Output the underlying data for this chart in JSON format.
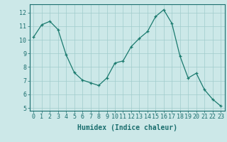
{
  "x": [
    0,
    1,
    2,
    3,
    4,
    5,
    6,
    7,
    8,
    9,
    10,
    11,
    12,
    13,
    14,
    15,
    16,
    17,
    18,
    19,
    20,
    21,
    22,
    23
  ],
  "y": [
    10.2,
    11.1,
    11.35,
    10.75,
    8.9,
    7.6,
    7.05,
    6.85,
    6.65,
    7.2,
    8.3,
    8.45,
    9.5,
    10.1,
    10.6,
    11.7,
    12.2,
    11.2,
    8.8,
    7.2,
    7.55,
    6.35,
    5.65,
    5.15
  ],
  "line_color": "#1a7a6e",
  "marker": "+",
  "marker_color": "#1a7a6e",
  "bg_color": "#cce8e8",
  "grid_color": "#a0cccc",
  "xlabel": "Humidex (Indice chaleur)",
  "ylim": [
    4.8,
    12.6
  ],
  "xlim": [
    -0.5,
    23.5
  ],
  "yticks": [
    5,
    6,
    7,
    8,
    9,
    10,
    11,
    12
  ],
  "xticks": [
    0,
    1,
    2,
    3,
    4,
    5,
    6,
    7,
    8,
    9,
    10,
    11,
    12,
    13,
    14,
    15,
    16,
    17,
    18,
    19,
    20,
    21,
    22,
    23
  ],
  "label_color": "#1a6e6e",
  "tick_color": "#1a6e6e",
  "axis_color": "#1a6e6e",
  "font_size_label": 7,
  "font_size_tick": 6
}
